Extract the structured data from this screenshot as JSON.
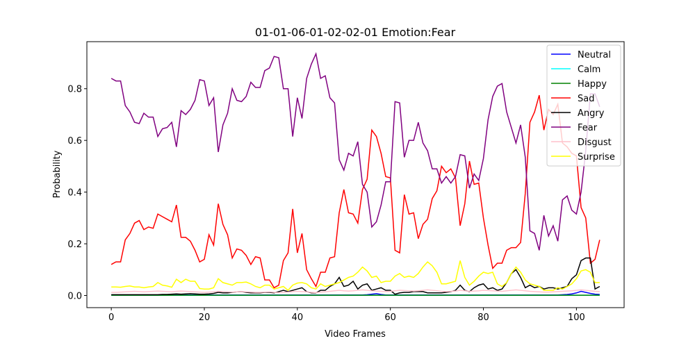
{
  "chart_data": {
    "type": "line",
    "title": "01-01-06-01-02-02-01 Emotion:Fear",
    "x_label": "Video Frames",
    "y_label": "Probability",
    "x": [
      0,
      1,
      2,
      3,
      4,
      5,
      6,
      7,
      8,
      9,
      10,
      11,
      12,
      13,
      14,
      15,
      16,
      17,
      18,
      19,
      20,
      21,
      22,
      23,
      24,
      25,
      26,
      27,
      28,
      29,
      30,
      31,
      32,
      33,
      34,
      35,
      36,
      37,
      38,
      39,
      40,
      41,
      42,
      43,
      44,
      45,
      46,
      47,
      48,
      49,
      50,
      51,
      52,
      53,
      54,
      55,
      56,
      57,
      58,
      59,
      60,
      61,
      62,
      63,
      64,
      65,
      66,
      67,
      68,
      69,
      70,
      71,
      72,
      73,
      74,
      75,
      76,
      77,
      78,
      79,
      80,
      81,
      82,
      83,
      84,
      85,
      86,
      87,
      88,
      89,
      90,
      91,
      92,
      93,
      94,
      95,
      96,
      97,
      98,
      99,
      100,
      101,
      102,
      103,
      104,
      105
    ],
    "xlim": [
      -5.25,
      110.25
    ],
    "xticks": [
      0,
      20,
      40,
      60,
      80,
      100
    ],
    "ylim": [
      -0.047,
      0.982
    ],
    "yticks": [
      {
        "value": 0,
        "label": "0.0"
      },
      0.2,
      0.4,
      0.6,
      0.8
    ],
    "legend_position": "upper right",
    "series": [
      {
        "name": "Neutral",
        "color": "#0000ff",
        "values": [
          0.002,
          0.002,
          0.002,
          0.002,
          0.002,
          0.002,
          0.002,
          0.002,
          0.002,
          0.002,
          0.002,
          0.002,
          0.002,
          0.002,
          0.002,
          0.002,
          0.002,
          0.002,
          0.002,
          0.002,
          0.002,
          0.002,
          0.002,
          0.002,
          0.002,
          0.002,
          0.002,
          0.002,
          0.002,
          0.002,
          0.002,
          0.002,
          0.002,
          0.002,
          0.002,
          0.002,
          0.002,
          0.002,
          0.002,
          0.002,
          0.002,
          0.002,
          0.002,
          0.002,
          0.002,
          0.002,
          0.002,
          0.002,
          0.002,
          0.002,
          0.002,
          0.002,
          0.002,
          0.002,
          0.002,
          0.003,
          0.005,
          0.007,
          0.004,
          0.002,
          0.002,
          0.002,
          0.002,
          0.002,
          0.002,
          0.002,
          0.002,
          0.002,
          0.002,
          0.002,
          0.002,
          0.002,
          0.002,
          0.002,
          0.002,
          0.002,
          0.002,
          0.002,
          0.002,
          0.002,
          0.002,
          0.002,
          0.002,
          0.002,
          0.002,
          0.002,
          0.002,
          0.002,
          0.002,
          0.002,
          0.002,
          0.002,
          0.002,
          0.002,
          0.002,
          0.002,
          0.002,
          0.003,
          0.004,
          0.006,
          0.01,
          0.016,
          0.012,
          0.008,
          0.005,
          0.004
        ]
      },
      {
        "name": "Calm",
        "color": "#00ffff",
        "values": [
          0.001,
          0.001,
          0.001,
          0.001,
          0.001,
          0.001,
          0.001,
          0.001,
          0.001,
          0.001,
          0.001,
          0.001,
          0.001,
          0.001,
          0.001,
          0.001,
          0.001,
          0.001,
          0.001,
          0.001,
          0.001,
          0.001,
          0.001,
          0.001,
          0.001,
          0.001,
          0.001,
          0.001,
          0.001,
          0.001,
          0.001,
          0.001,
          0.001,
          0.001,
          0.001,
          0.001,
          0.001,
          0.001,
          0.001,
          0.001,
          0.001,
          0.001,
          0.001,
          0.001,
          0.001,
          0.001,
          0.001,
          0.001,
          0.001,
          0.001,
          0.001,
          0.001,
          0.001,
          0.001,
          0.001,
          0.001,
          0.001,
          0.001,
          0.001,
          0.001,
          0.001,
          0.001,
          0.001,
          0.001,
          0.001,
          0.001,
          0.001,
          0.001,
          0.001,
          0.001,
          0.001,
          0.001,
          0.001,
          0.001,
          0.001,
          0.001,
          0.001,
          0.001,
          0.001,
          0.001,
          0.001,
          0.001,
          0.001,
          0.001,
          0.001,
          0.001,
          0.001,
          0.001,
          0.001,
          0.001,
          0.001,
          0.001,
          0.001,
          0.001,
          0.001,
          0.001,
          0.001,
          0.001,
          0.001,
          0.001,
          0.001,
          0.001,
          0.001,
          0.001,
          0.001,
          0.001
        ]
      },
      {
        "name": "Happy",
        "color": "#008000",
        "values": [
          0.001,
          0.001,
          0.001,
          0.001,
          0.001,
          0.001,
          0.001,
          0.001,
          0.001,
          0.001,
          0.001,
          0.001,
          0.001,
          0.001,
          0.001,
          0.001,
          0.001,
          0.001,
          0.001,
          0.001,
          0.001,
          0.001,
          0.001,
          0.001,
          0.001,
          0.001,
          0.001,
          0.001,
          0.001,
          0.001,
          0.001,
          0.001,
          0.001,
          0.001,
          0.001,
          0.001,
          0.001,
          0.001,
          0.001,
          0.001,
          0.001,
          0.001,
          0.001,
          0.001,
          0.001,
          0.001,
          0.001,
          0.001,
          0.001,
          0.001,
          0.001,
          0.001,
          0.001,
          0.001,
          0.001,
          0.001,
          0.001,
          0.001,
          0.001,
          0.001,
          0.001,
          0.001,
          0.001,
          0.001,
          0.001,
          0.001,
          0.001,
          0.001,
          0.001,
          0.001,
          0.001,
          0.001,
          0.001,
          0.001,
          0.001,
          0.001,
          0.001,
          0.001,
          0.001,
          0.001,
          0.001,
          0.001,
          0.001,
          0.001,
          0.001,
          0.001,
          0.001,
          0.001,
          0.001,
          0.001,
          0.001,
          0.001,
          0.001,
          0.001,
          0.001,
          0.001,
          0.001,
          0.001,
          0.001,
          0.001,
          0.001,
          0.001,
          0.001,
          0.001,
          0.001,
          0.001
        ]
      },
      {
        "name": "Sad",
        "color": "#ff0000",
        "values": [
          0.12,
          0.13,
          0.13,
          0.215,
          0.24,
          0.28,
          0.29,
          0.255,
          0.265,
          0.26,
          0.315,
          0.305,
          0.295,
          0.285,
          0.35,
          0.225,
          0.225,
          0.21,
          0.175,
          0.13,
          0.14,
          0.235,
          0.195,
          0.355,
          0.275,
          0.235,
          0.145,
          0.18,
          0.175,
          0.155,
          0.12,
          0.15,
          0.145,
          0.06,
          0.06,
          0.03,
          0.04,
          0.135,
          0.165,
          0.335,
          0.165,
          0.24,
          0.1,
          0.065,
          0.035,
          0.09,
          0.09,
          0.145,
          0.15,
          0.32,
          0.41,
          0.32,
          0.315,
          0.28,
          0.41,
          0.45,
          0.64,
          0.615,
          0.55,
          0.46,
          0.455,
          0.175,
          0.165,
          0.39,
          0.315,
          0.32,
          0.22,
          0.275,
          0.295,
          0.375,
          0.405,
          0.5,
          0.475,
          0.49,
          0.455,
          0.27,
          0.355,
          0.52,
          0.43,
          0.435,
          0.3,
          0.195,
          0.105,
          0.125,
          0.125,
          0.175,
          0.185,
          0.185,
          0.205,
          0.395,
          0.67,
          0.71,
          0.775,
          0.64,
          0.72,
          0.7,
          0.74,
          0.59,
          0.575,
          0.55,
          0.54,
          0.34,
          0.3,
          0.125,
          0.14,
          0.215
        ]
      },
      {
        "name": "Angry",
        "color": "#000000",
        "values": [
          0.003,
          0.003,
          0.003,
          0.003,
          0.003,
          0.003,
          0.003,
          0.003,
          0.003,
          0.003,
          0.003,
          0.004,
          0.004,
          0.005,
          0.006,
          0.005,
          0.006,
          0.007,
          0.006,
          0.005,
          0.005,
          0.006,
          0.008,
          0.012,
          0.01,
          0.01,
          0.012,
          0.014,
          0.015,
          0.012,
          0.01,
          0.01,
          0.01,
          0.012,
          0.012,
          0.01,
          0.015,
          0.02,
          0.015,
          0.02,
          0.025,
          0.03,
          0.015,
          0.01,
          0.01,
          0.02,
          0.02,
          0.035,
          0.045,
          0.07,
          0.035,
          0.04,
          0.055,
          0.025,
          0.04,
          0.045,
          0.02,
          0.025,
          0.03,
          0.02,
          0.02,
          0.005,
          0.01,
          0.012,
          0.012,
          0.015,
          0.015,
          0.015,
          0.01,
          0.01,
          0.01,
          0.01,
          0.012,
          0.015,
          0.02,
          0.04,
          0.02,
          0.015,
          0.03,
          0.04,
          0.045,
          0.025,
          0.03,
          0.02,
          0.025,
          0.05,
          0.085,
          0.1,
          0.07,
          0.03,
          0.04,
          0.03,
          0.035,
          0.025,
          0.03,
          0.03,
          0.025,
          0.03,
          0.035,
          0.065,
          0.08,
          0.135,
          0.145,
          0.145,
          0.025,
          0.035
        ]
      },
      {
        "name": "Fear",
        "color": "#800080",
        "values": [
          0.84,
          0.83,
          0.83,
          0.735,
          0.71,
          0.67,
          0.665,
          0.705,
          0.69,
          0.69,
          0.615,
          0.645,
          0.65,
          0.67,
          0.575,
          0.715,
          0.7,
          0.72,
          0.755,
          0.835,
          0.83,
          0.735,
          0.765,
          0.555,
          0.66,
          0.705,
          0.8,
          0.755,
          0.75,
          0.77,
          0.825,
          0.805,
          0.805,
          0.87,
          0.88,
          0.925,
          0.92,
          0.8,
          0.8,
          0.615,
          0.765,
          0.685,
          0.84,
          0.895,
          0.935,
          0.84,
          0.85,
          0.765,
          0.745,
          0.525,
          0.485,
          0.55,
          0.54,
          0.595,
          0.43,
          0.4,
          0.265,
          0.285,
          0.35,
          0.44,
          0.44,
          0.75,
          0.745,
          0.535,
          0.6,
          0.6,
          0.67,
          0.59,
          0.56,
          0.49,
          0.49,
          0.435,
          0.46,
          0.435,
          0.46,
          0.545,
          0.54,
          0.415,
          0.47,
          0.445,
          0.53,
          0.68,
          0.77,
          0.81,
          0.82,
          0.71,
          0.65,
          0.59,
          0.66,
          0.535,
          0.25,
          0.24,
          0.175,
          0.31,
          0.23,
          0.27,
          0.21,
          0.37,
          0.385,
          0.33,
          0.315,
          0.4,
          0.56,
          0.78,
          0.78,
          0.73
        ]
      },
      {
        "name": "Disgust",
        "color": "#ffc0cb",
        "values": [
          0.012,
          0.012,
          0.013,
          0.014,
          0.015,
          0.016,
          0.015,
          0.014,
          0.015,
          0.016,
          0.017,
          0.016,
          0.015,
          0.014,
          0.016,
          0.017,
          0.016,
          0.015,
          0.014,
          0.013,
          0.012,
          0.013,
          0.014,
          0.016,
          0.015,
          0.014,
          0.013,
          0.014,
          0.015,
          0.014,
          0.013,
          0.012,
          0.012,
          0.013,
          0.014,
          0.012,
          0.011,
          0.012,
          0.013,
          0.015,
          0.016,
          0.015,
          0.014,
          0.012,
          0.011,
          0.013,
          0.014,
          0.016,
          0.018,
          0.02,
          0.018,
          0.017,
          0.018,
          0.02,
          0.022,
          0.02,
          0.018,
          0.017,
          0.016,
          0.015,
          0.016,
          0.018,
          0.02,
          0.019,
          0.018,
          0.017,
          0.018,
          0.02,
          0.022,
          0.02,
          0.018,
          0.016,
          0.015,
          0.016,
          0.017,
          0.02,
          0.018,
          0.016,
          0.017,
          0.018,
          0.02,
          0.019,
          0.018,
          0.017,
          0.016,
          0.018,
          0.02,
          0.022,
          0.02,
          0.018,
          0.016,
          0.015,
          0.014,
          0.013,
          0.013,
          0.014,
          0.015,
          0.016,
          0.017,
          0.018,
          0.02,
          0.022,
          0.02,
          0.018,
          0.016,
          0.015
        ]
      },
      {
        "name": "Surprise",
        "color": "#ffff00",
        "values": [
          0.033,
          0.033,
          0.032,
          0.035,
          0.037,
          0.033,
          0.033,
          0.03,
          0.033,
          0.035,
          0.05,
          0.04,
          0.037,
          0.032,
          0.063,
          0.05,
          0.063,
          0.055,
          0.055,
          0.027,
          0.025,
          0.025,
          0.03,
          0.065,
          0.05,
          0.045,
          0.04,
          0.05,
          0.05,
          0.052,
          0.045,
          0.035,
          0.03,
          0.04,
          0.04,
          0.025,
          0.03,
          0.035,
          0.02,
          0.04,
          0.048,
          0.05,
          0.045,
          0.03,
          0.025,
          0.045,
          0.035,
          0.04,
          0.045,
          0.05,
          0.06,
          0.07,
          0.075,
          0.09,
          0.11,
          0.095,
          0.07,
          0.075,
          0.05,
          0.055,
          0.055,
          0.075,
          0.085,
          0.07,
          0.075,
          0.07,
          0.085,
          0.11,
          0.13,
          0.115,
          0.09,
          0.045,
          0.045,
          0.05,
          0.055,
          0.135,
          0.07,
          0.04,
          0.055,
          0.075,
          0.09,
          0.085,
          0.09,
          0.045,
          0.035,
          0.05,
          0.085,
          0.11,
          0.09,
          0.06,
          0.045,
          0.04,
          0.035,
          0.02,
          0.02,
          0.02,
          0.03,
          0.025,
          0.035,
          0.045,
          0.065,
          0.095,
          0.1,
          0.09,
          0.05,
          0.05
        ]
      }
    ]
  }
}
